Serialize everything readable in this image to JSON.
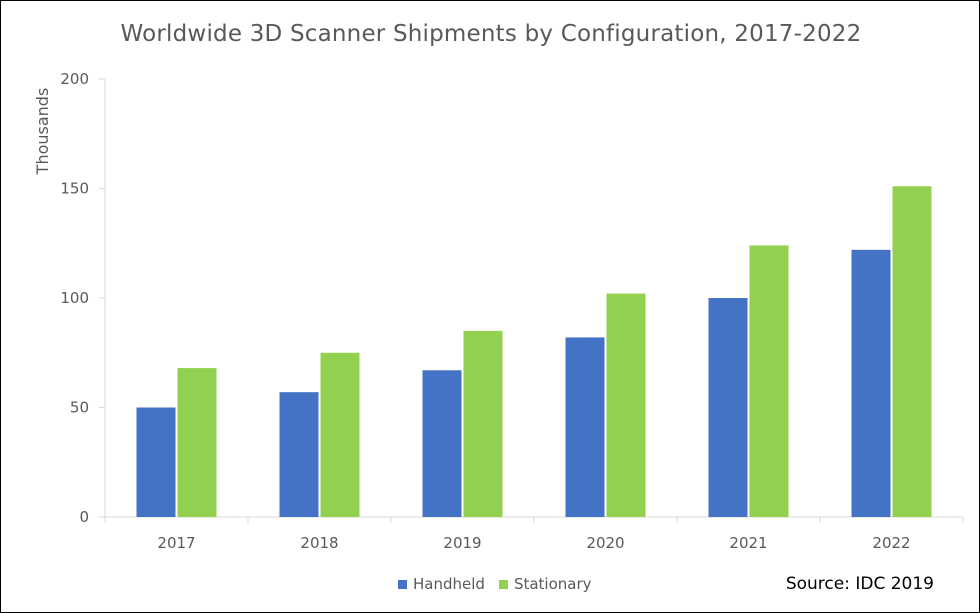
{
  "chart_data": {
    "type": "bar",
    "title": "Worldwide 3D Scanner Shipments by Configuration, 2017-2022",
    "ylabel": "Thousands",
    "xlabel": "",
    "categories": [
      "2017",
      "2018",
      "2019",
      "2020",
      "2021",
      "2022"
    ],
    "ylim": [
      0,
      200
    ],
    "yticks": [
      0,
      50,
      100,
      150,
      200
    ],
    "grid": false,
    "legend_position": "bottom",
    "series": [
      {
        "name": "Handheld",
        "color": "#4472C4",
        "values": [
          50,
          57,
          67,
          82,
          100,
          122
        ]
      },
      {
        "name": "Stationary",
        "color": "#92D050",
        "values": [
          68,
          75,
          85,
          102,
          124,
          151
        ]
      }
    ]
  },
  "source_note": "Source: IDC 2019"
}
